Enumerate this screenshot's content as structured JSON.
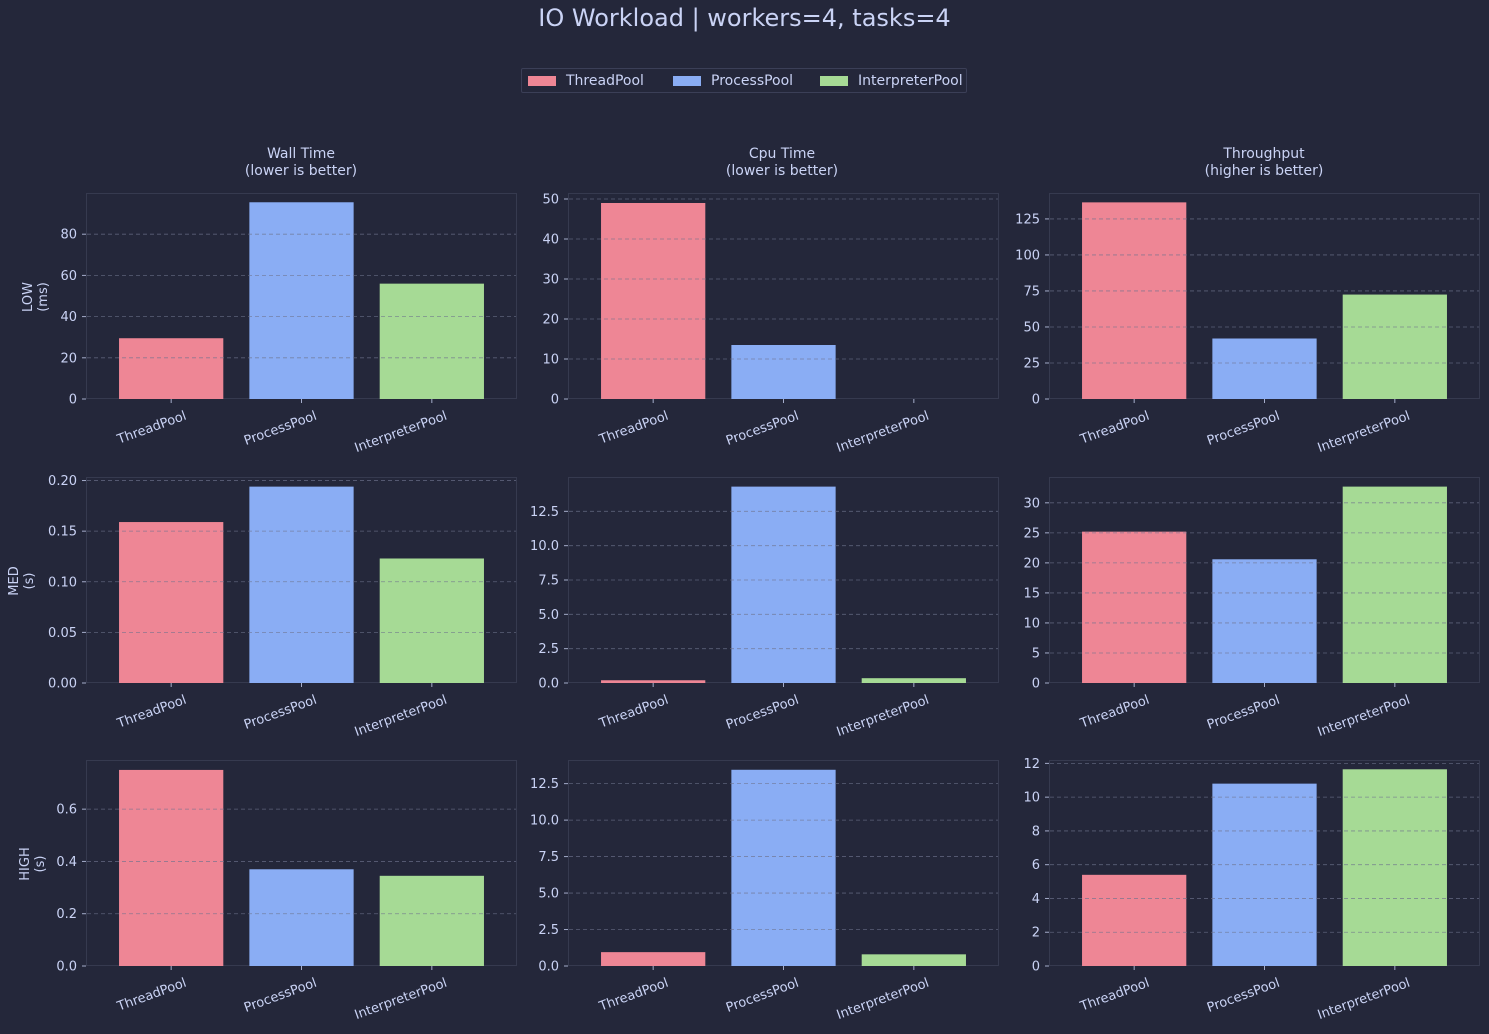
{
  "title": "IO Workload | workers=4, tasks=4",
  "legend": [
    {
      "name": "ThreadPool",
      "color": "#ee8695"
    },
    {
      "name": "ProcessPool",
      "color": "#8aadf4"
    },
    {
      "name": "InterpreterPool",
      "color": "#a6da95"
    }
  ],
  "columns": [
    {
      "title": "Wall Time",
      "subtitle": "(lower is better)"
    },
    {
      "title": "Cpu Time",
      "subtitle": "(lower is better)"
    },
    {
      "title": "Throughput",
      "subtitle": "(higher is better)"
    }
  ],
  "rows": [
    {
      "label": "LOW",
      "unit": "(ms)"
    },
    {
      "label": "MED",
      "unit": "(s)"
    },
    {
      "label": "HIGH",
      "unit": "(s)"
    }
  ],
  "chart_data": [
    {
      "type": "bar",
      "row": 0,
      "col": 0,
      "categories": [
        "ThreadPool",
        "ProcessPool",
        "InterpreterPool"
      ],
      "values": [
        29.5,
        95.5,
        56.0
      ],
      "ylim": [
        0,
        100
      ],
      "yticks": [
        "0",
        "20",
        "40",
        "60",
        "80"
      ],
      "ytick_values": [
        0,
        20,
        40,
        60,
        80
      ],
      "grid": true
    },
    {
      "type": "bar",
      "row": 0,
      "col": 1,
      "categories": [
        "ThreadPool",
        "ProcessPool",
        "InterpreterPool"
      ],
      "values": [
        49.0,
        13.5,
        0
      ],
      "ylim": [
        0,
        51.5
      ],
      "yticks": [
        "0",
        "10",
        "20",
        "30",
        "40",
        "50"
      ],
      "ytick_values": [
        0,
        10,
        20,
        30,
        40,
        50
      ],
      "grid": true
    },
    {
      "type": "bar",
      "row": 0,
      "col": 2,
      "categories": [
        "ThreadPool",
        "ProcessPool",
        "InterpreterPool"
      ],
      "values": [
        136.5,
        42.0,
        72.5
      ],
      "ylim": [
        0,
        143
      ],
      "yticks": [
        "0",
        "25",
        "50",
        "75",
        "100",
        "125"
      ],
      "ytick_values": [
        0,
        25,
        50,
        75,
        100,
        125
      ],
      "grid": true
    },
    {
      "type": "bar",
      "row": 1,
      "col": 0,
      "categories": [
        "ThreadPool",
        "ProcessPool",
        "InterpreterPool"
      ],
      "values": [
        0.159,
        0.194,
        0.123
      ],
      "ylim": [
        0,
        0.2035
      ],
      "yticks": [
        "0.00",
        "0.05",
        "0.10",
        "0.15",
        "0.20"
      ],
      "ytick_values": [
        0,
        0.05,
        0.1,
        0.15,
        0.2
      ],
      "grid": true
    },
    {
      "type": "bar",
      "row": 1,
      "col": 1,
      "categories": [
        "ThreadPool",
        "ProcessPool",
        "InterpreterPool"
      ],
      "values": [
        0.2,
        14.3,
        0.35
      ],
      "ylim": [
        0,
        15.0
      ],
      "yticks": [
        "0.0",
        "2.5",
        "5.0",
        "7.5",
        "10.0",
        "12.5"
      ],
      "ytick_values": [
        0,
        2.5,
        5,
        7.5,
        10,
        12.5
      ],
      "grid": true
    },
    {
      "type": "bar",
      "row": 1,
      "col": 2,
      "categories": [
        "ThreadPool",
        "ProcessPool",
        "InterpreterPool"
      ],
      "values": [
        25.2,
        20.6,
        32.7
      ],
      "ylim": [
        0,
        34.3
      ],
      "yticks": [
        "0",
        "5",
        "10",
        "15",
        "20",
        "25",
        "30"
      ],
      "ytick_values": [
        0,
        5,
        10,
        15,
        20,
        25,
        30
      ],
      "grid": true
    },
    {
      "type": "bar",
      "row": 2,
      "col": 0,
      "categories": [
        "ThreadPool",
        "ProcessPool",
        "InterpreterPool"
      ],
      "values": [
        0.75,
        0.37,
        0.345
      ],
      "ylim": [
        0,
        0.788
      ],
      "yticks": [
        "0.0",
        "0.2",
        "0.4",
        "0.6"
      ],
      "ytick_values": [
        0,
        0.2,
        0.4,
        0.6
      ],
      "grid": true
    },
    {
      "type": "bar",
      "row": 2,
      "col": 1,
      "categories": [
        "ThreadPool",
        "ProcessPool",
        "InterpreterPool"
      ],
      "values": [
        0.95,
        13.45,
        0.8
      ],
      "ylim": [
        0,
        14.12
      ],
      "yticks": [
        "0.0",
        "2.5",
        "5.0",
        "7.5",
        "10.0",
        "12.5"
      ],
      "ytick_values": [
        0,
        2.5,
        5,
        7.5,
        10,
        12.5
      ],
      "grid": true
    },
    {
      "type": "bar",
      "row": 2,
      "col": 2,
      "categories": [
        "ThreadPool",
        "ProcessPool",
        "InterpreterPool"
      ],
      "values": [
        5.4,
        10.8,
        11.65
      ],
      "ylim": [
        0,
        12.2
      ],
      "yticks": [
        "0",
        "2",
        "4",
        "6",
        "8",
        "10",
        "12"
      ],
      "ytick_values": [
        0,
        2,
        4,
        6,
        8,
        10,
        12
      ],
      "grid": true
    }
  ]
}
